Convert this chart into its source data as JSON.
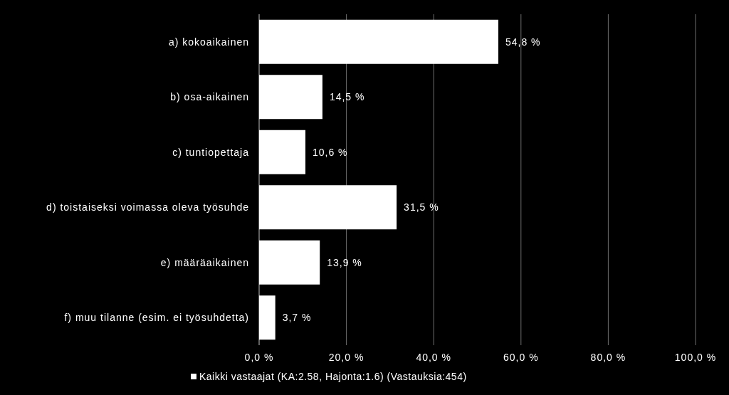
{
  "chart_data": {
    "type": "bar",
    "orientation": "horizontal",
    "categories": [
      "a) kokoaikainen",
      "b) osa-aikainen",
      "c) tuntiopettaja",
      "d) toistaiseksi voimassa oleva työsuhde",
      "e) määräaikainen",
      "f) muu tilanne (esim. ei työsuhdetta)"
    ],
    "series": [
      {
        "name": "Kaikki vastaajat (KA:2.58, Hajonta:1.6) (Vastauksia:454)",
        "color": "#ffffff",
        "values": [
          54.8,
          14.5,
          10.6,
          31.5,
          13.9,
          3.7
        ],
        "value_labels": [
          "54,8 %",
          "14,5 %",
          "10,6 %",
          "31,5 %",
          "13,9 %",
          "3,7 %"
        ]
      }
    ],
    "xlim": [
      0,
      100
    ],
    "xticks": [
      {
        "value": 0,
        "label": "0,0 %"
      },
      {
        "value": 20,
        "label": "20,0 %"
      },
      {
        "value": 40,
        "label": "40,0 %"
      },
      {
        "value": 60,
        "label": "60,0 %"
      },
      {
        "value": 80,
        "label": "80,0 %"
      },
      {
        "value": 100,
        "label": "100,0 %"
      }
    ],
    "grid": "x",
    "legend": "bottom"
  }
}
